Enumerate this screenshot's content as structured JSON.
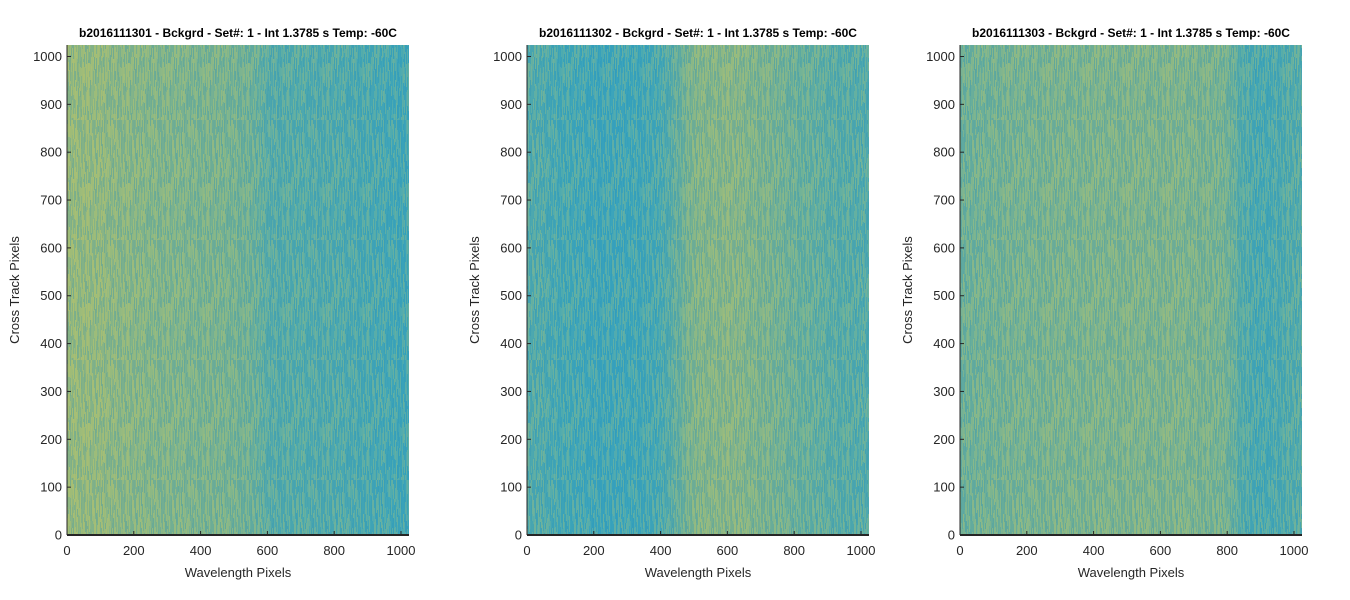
{
  "chart_data": [
    {
      "type": "heatmap",
      "title": "b2016111301 - Bckgrd - Set#: 1 - Int 1.3785 s Temp: -60C",
      "xlabel": "Wavelength Pixels",
      "ylabel": "Cross Track Pixels",
      "xlim": [
        0,
        1024
      ],
      "ylim": [
        0,
        1024
      ],
      "xticks": [
        0,
        200,
        400,
        600,
        800,
        1000
      ],
      "yticks": [
        0,
        100,
        200,
        300,
        400,
        500,
        600,
        700,
        800,
        900,
        1000
      ],
      "colormap": "parula",
      "color_low": "#1fa0d0",
      "color_high": "#c9c45a",
      "intensity_profile": {
        "x": [
          0,
          100,
          200,
          300,
          400,
          500,
          560,
          600,
          700,
          800,
          900,
          1000,
          1024
        ],
        "level": [
          0.72,
          0.68,
          0.62,
          0.58,
          0.55,
          0.52,
          0.45,
          0.32,
          0.3,
          0.28,
          0.24,
          0.2,
          0.2
        ]
      }
    },
    {
      "type": "heatmap",
      "title": "b2016111302 - Bckgrd - Set#: 1 - Int 1.3785 s Temp: -60C",
      "xlabel": "Wavelength Pixels",
      "ylabel": "Cross Track Pixels",
      "xlim": [
        0,
        1024
      ],
      "ylim": [
        0,
        1024
      ],
      "xticks": [
        0,
        200,
        400,
        600,
        800,
        1000
      ],
      "yticks": [
        0,
        100,
        200,
        300,
        400,
        500,
        600,
        700,
        800,
        900,
        1000
      ],
      "colormap": "parula",
      "color_low": "#1fa0d0",
      "color_high": "#c9c45a",
      "intensity_profile": {
        "x": [
          0,
          100,
          200,
          300,
          400,
          450,
          500,
          600,
          700,
          800,
          900,
          1000,
          1024
        ],
        "level": [
          0.3,
          0.22,
          0.18,
          0.18,
          0.22,
          0.4,
          0.58,
          0.62,
          0.55,
          0.45,
          0.35,
          0.3,
          0.3
        ]
      }
    },
    {
      "type": "heatmap",
      "title": "b2016111303 - Bckgrd - Set#: 1 - Int 1.3785 s Temp: -60C",
      "xlabel": "Wavelength Pixels",
      "ylabel": "Cross Track Pixels",
      "xlim": [
        0,
        1024
      ],
      "ylim": [
        0,
        1024
      ],
      "xticks": [
        0,
        200,
        400,
        600,
        800,
        1000
      ],
      "yticks": [
        0,
        100,
        200,
        300,
        400,
        500,
        600,
        700,
        800,
        900,
        1000
      ],
      "colormap": "parula",
      "color_low": "#1fa0d0",
      "color_high": "#c9c45a",
      "intensity_profile": {
        "x": [
          0,
          100,
          200,
          300,
          400,
          500,
          600,
          700,
          800,
          850,
          900,
          1000,
          1024
        ],
        "level": [
          0.45,
          0.5,
          0.52,
          0.54,
          0.55,
          0.56,
          0.56,
          0.55,
          0.5,
          0.28,
          0.22,
          0.3,
          0.3
        ]
      }
    }
  ]
}
